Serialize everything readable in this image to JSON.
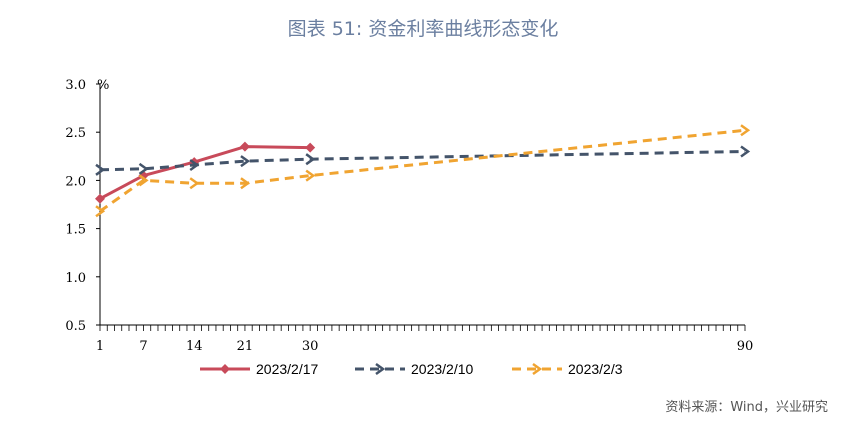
{
  "title": "图表 51: 资金利率曲线形态变化",
  "source": "资料来源：Wind，兴业研究",
  "chart_data": {
    "type": "line",
    "unit": "%",
    "x_ticks": [
      1,
      7,
      14,
      21,
      30,
      90
    ],
    "y_ticks": [
      "0.5",
      "1.0",
      "1.5",
      "2.0",
      "2.5",
      "3.0"
    ],
    "xlim": [
      1,
      90
    ],
    "ylim": [
      0.5,
      3.0
    ],
    "series": [
      {
        "name": "2023/2/17",
        "color": "#c84a5a",
        "dash": "solid",
        "x": [
          1,
          7,
          14,
          21,
          30
        ],
        "y": [
          1.81,
          2.05,
          2.19,
          2.35,
          2.34
        ]
      },
      {
        "name": "2023/2/10",
        "color": "#44546a",
        "dash": "dashed",
        "x": [
          1,
          7,
          14,
          21,
          30,
          90
        ],
        "y": [
          2.11,
          2.12,
          2.16,
          2.2,
          2.22,
          2.3
        ]
      },
      {
        "name": "2023/2/3",
        "color": "#f0a431",
        "dash": "dashed",
        "x": [
          1,
          7,
          14,
          21,
          30,
          90
        ],
        "y": [
          1.68,
          2.0,
          1.97,
          1.97,
          2.05,
          2.52
        ]
      }
    ]
  }
}
